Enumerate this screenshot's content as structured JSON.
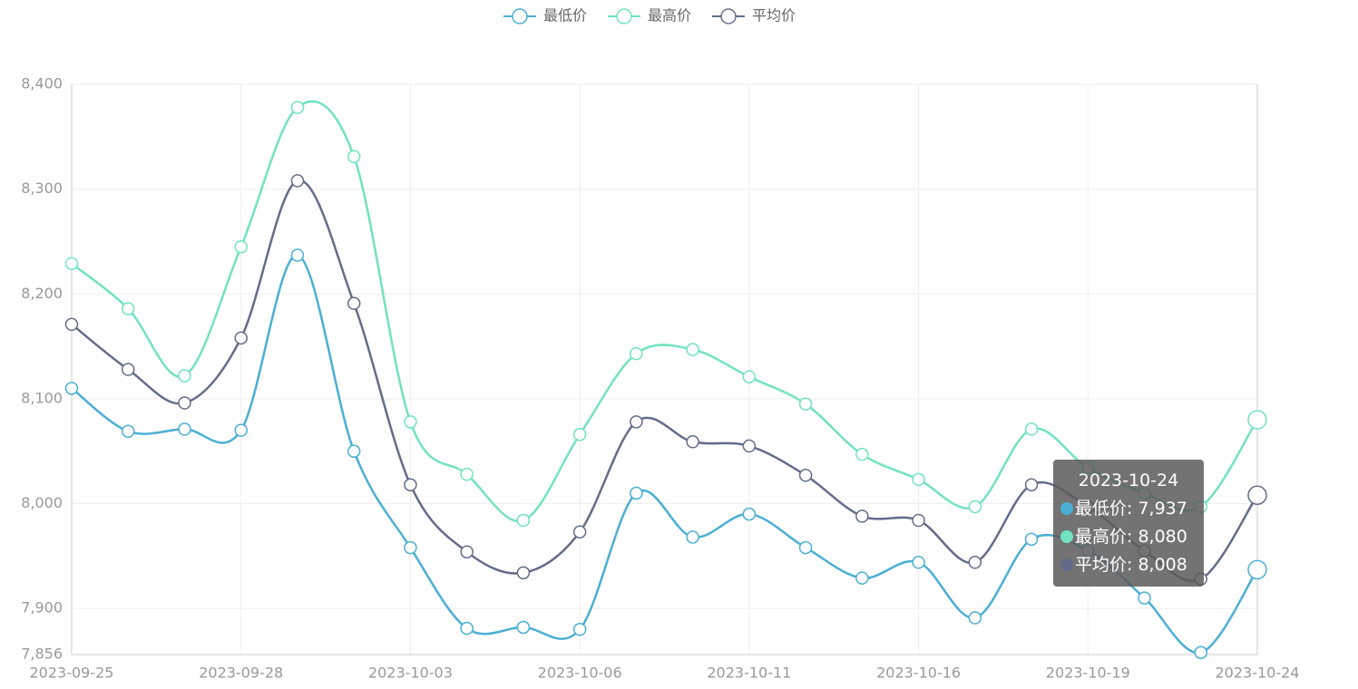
{
  "chart_data": {
    "type": "line",
    "categories": [
      "2023-09-25",
      null,
      null,
      "2023-09-28",
      null,
      null,
      "2023-10-03",
      null,
      null,
      "2023-10-06",
      null,
      null,
      "2023-10-11",
      null,
      null,
      "2023-10-16",
      null,
      null,
      "2023-10-19",
      null,
      null,
      "2023-10-24"
    ],
    "series": [
      {
        "name": "最低价",
        "color": "#4aafd3",
        "values": [
          8110,
          8069,
          8071,
          8070,
          8237,
          8050,
          7958,
          7881,
          7882,
          7880,
          8010,
          7968,
          7990,
          7958,
          7929,
          7944,
          7891,
          7966,
          7955,
          7910,
          7858,
          7937
        ]
      },
      {
        "name": "最高价",
        "color": "#72e2c0",
        "values": [
          8229,
          8186,
          8122,
          8245,
          8378,
          8331,
          8078,
          8028,
          7984,
          8066,
          8143,
          8147,
          8121,
          8095,
          8047,
          8023,
          7997,
          8071,
          8034,
          8010,
          7997,
          8080
        ]
      },
      {
        "name": "平均价",
        "color": "#646c8a",
        "values": [
          8171,
          8128,
          8096,
          8158,
          8308,
          8191,
          8018,
          7954,
          7934,
          7973,
          8078,
          8059,
          8055,
          8027,
          7988,
          7984,
          7944,
          8018,
          7997,
          7955,
          7928,
          8008
        ]
      }
    ],
    "ylim": [
      7856,
      8400
    ],
    "yticks": [
      {
        "value": 7856,
        "label": "7,856"
      },
      {
        "value": 7900,
        "label": "7,900"
      },
      {
        "value": 8000,
        "label": "8,000"
      },
      {
        "value": 8100,
        "label": "8,100"
      },
      {
        "value": 8200,
        "label": "8,200"
      },
      {
        "value": 8300,
        "label": "8,300"
      },
      {
        "value": 8400,
        "label": "8,400"
      }
    ],
    "grid": true,
    "legend": "top",
    "tooltip": {
      "rows": [
        "最低价: 7,937",
        "最高价: 8,080",
        "平均价: 8,008"
      ]
    }
  }
}
